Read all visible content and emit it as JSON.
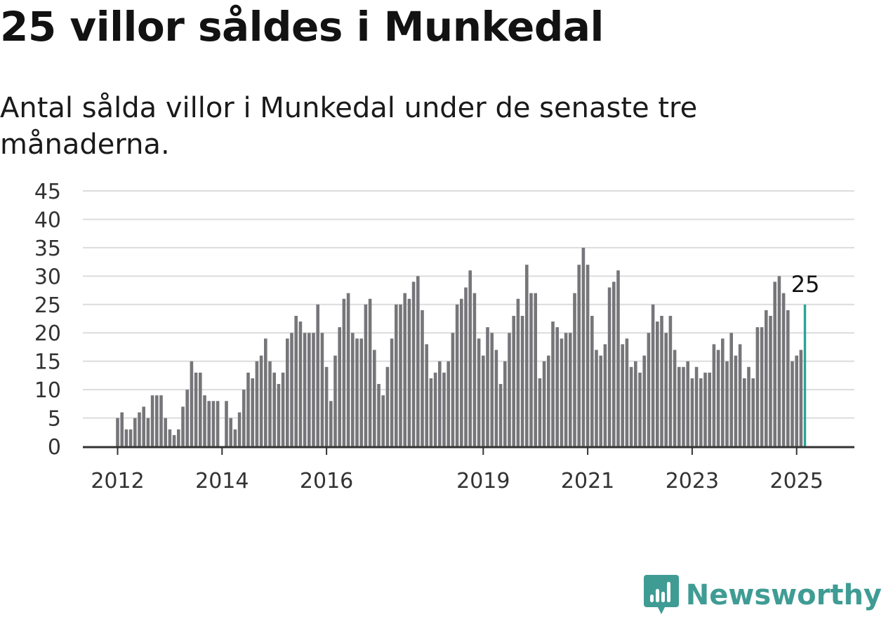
{
  "title": "25 villor såldes i Munkedal",
  "subtitle": "Antal sålda villor i Munkedal under de senaste tre månaderna.",
  "brand": {
    "name": "Newsworthy",
    "color": "#3f9c94"
  },
  "colors": {
    "bar": "#76767a",
    "highlight": "#2aa49a",
    "grid": "#dcdcdc",
    "axis": "#333333"
  },
  "chart_data": {
    "type": "bar",
    "title": "",
    "xlabel": "",
    "ylabel": "",
    "ylim": [
      0,
      45
    ],
    "yticks": [
      0,
      5,
      10,
      15,
      20,
      25,
      30,
      35,
      40,
      45
    ],
    "grid": true,
    "x_tick_labels": [
      "2012",
      "2014",
      "2016",
      "2019",
      "2021",
      "2023",
      "2025"
    ],
    "start_month": "2012-01",
    "values": [
      5,
      6,
      3,
      3,
      5,
      6,
      7,
      5,
      9,
      9,
      9,
      5,
      3,
      2,
      3,
      7,
      10,
      15,
      13,
      13,
      9,
      8,
      8,
      8,
      0,
      8,
      5,
      3,
      6,
      10,
      13,
      12,
      15,
      16,
      19,
      15,
      13,
      11,
      13,
      19,
      20,
      23,
      22,
      20,
      20,
      20,
      25,
      20,
      14,
      8,
      16,
      21,
      26,
      27,
      20,
      19,
      19,
      25,
      26,
      17,
      11,
      9,
      14,
      19,
      25,
      25,
      27,
      26,
      29,
      30,
      24,
      18,
      12,
      13,
      15,
      13,
      15,
      20,
      25,
      26,
      28,
      31,
      27,
      19,
      16,
      21,
      20,
      17,
      11,
      15,
      20,
      23,
      26,
      23,
      32,
      27,
      27,
      12,
      15,
      16,
      22,
      21,
      19,
      20,
      20,
      27,
      32,
      35,
      32,
      23,
      17,
      16,
      18,
      28,
      29,
      31,
      18,
      19,
      14,
      15,
      13,
      16,
      20,
      25,
      22,
      23,
      20,
      23,
      17,
      14,
      14,
      15,
      12,
      14,
      12,
      13,
      13,
      18,
      17,
      19,
      15,
      20,
      16,
      18,
      12,
      14,
      12,
      21,
      21,
      24,
      23,
      29,
      30,
      27,
      24,
      15,
      16,
      17,
      25
    ],
    "highlight_label": "25"
  }
}
